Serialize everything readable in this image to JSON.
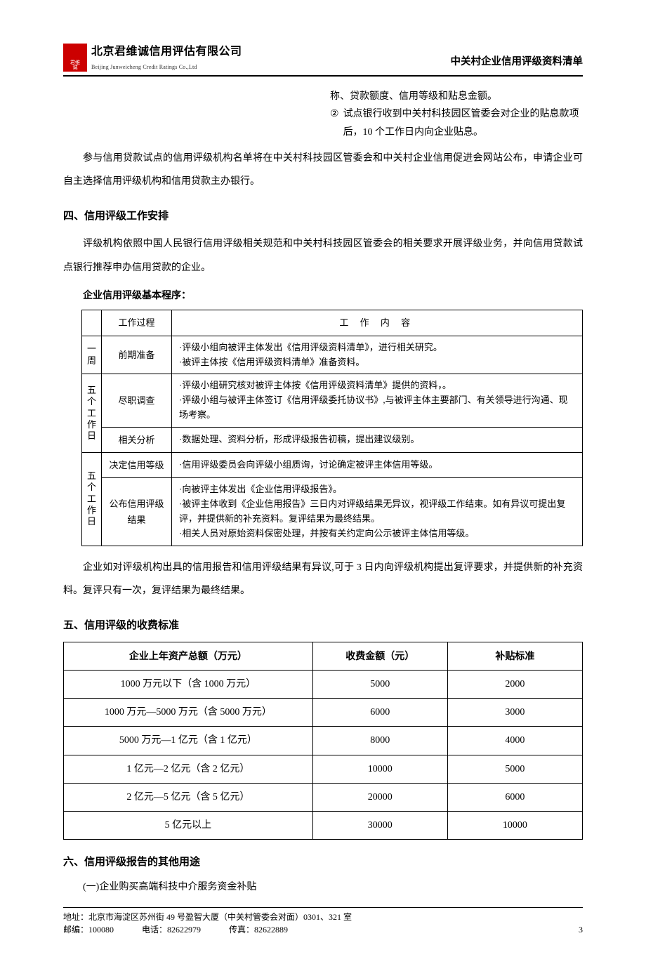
{
  "header": {
    "company_cn": "北京君维诚信用评估有限公司",
    "company_en": "Beijing Junweicheng Credit Ratings Co.,Ltd",
    "logo_chars": "君维诚",
    "doc_title": "中关村企业信用评级资料清单"
  },
  "cont_frag": {
    "line1": "称、贷款额度、信用等级和贴息金额。",
    "item2_marker": "②",
    "item2_text": "试点银行收到中关村科技园区管委会对企业的贴息款项后，10 个工作日内向企业贴息。"
  },
  "para_intro": "参与信用贷款试点的信用评级机构名单将在中关村科技园区管委会和中关村企业信用促进会网站公布，申请企业可自主选择信用评级机构和信用贷款主办银行。",
  "sec4": {
    "title": "四、信用评级工作安排",
    "para": "评级机构依照中国人民银行信用评级相关规范和中关村科技园区管委会的相关要求开展评级业务，并向信用贷款试点银行推荐申办信用贷款的企业。",
    "sub_title": "企业信用评级基本程序：",
    "table": {
      "head_stage": "工作过程",
      "head_content": "工 作 内 容",
      "rows": [
        {
          "period": "一周",
          "stage": "前期准备",
          "content": "·评级小组向被评主体发出《信用评级资料清单》，进行相关研究。\n·被评主体按《信用评级资料清单》准备资料。"
        },
        {
          "period": "五个工作日",
          "stage": "尽职调查",
          "content": "·评级小组研究核对被评主体按《信用评级资料清单》提供的资料，。\n·评级小组与被评主体签订《信用评级委托协议书》,与被评主体主要部门、有关领导进行沟通、现场考察。"
        },
        {
          "stage": "相关分析",
          "content": "·数据处理、资料分析，形成评级报告初稿，提出建议级别。"
        },
        {
          "period": "五个工作日",
          "stage": "决定信用等级",
          "content": "·信用评级委员会向评级小组质询，讨论确定被评主体信用等级。"
        },
        {
          "stage": "公布信用评级结果",
          "content": "·向被评主体发出《企业信用评级报告》。\n·被评主体收到《企业信用报告》三日内对评级结果无异议，视评级工作结束。如有异议可提出复评，并提供新的补充资料。复评结果为最终结果。\n·相关人员对原始资料保密处理，并按有关约定向公示被评主体信用等级。"
        }
      ]
    },
    "para_after": "企业如对评级机构出具的信用报告和信用评级结果有异议,可于 3 日内向评级机构提出复评要求，并提供新的补充资料。复评只有一次，复评结果为最终结果。"
  },
  "sec5": {
    "title": "五、信用评级的收费标准",
    "table": {
      "cols": [
        "企业上年资产总额（万元）",
        "收费金额（元）",
        "补贴标准"
      ],
      "rows": [
        [
          "1000 万元以下（含 1000 万元）",
          "5000",
          "2000"
        ],
        [
          "1000 万元—5000 万元（含 5000 万元）",
          "6000",
          "3000"
        ],
        [
          "5000 万元—1 亿元（含 1 亿元）",
          "8000",
          "4000"
        ],
        [
          "1 亿元—2 亿元（含 2 亿元）",
          "10000",
          "5000"
        ],
        [
          "2 亿元—5 亿元（含 5 亿元）",
          "20000",
          "6000"
        ],
        [
          "5 亿元以上",
          "30000",
          "10000"
        ]
      ]
    }
  },
  "sec6": {
    "title": "六、信用评级报告的其他用途",
    "sub1": "(一)企业购买高端科技中介服务资金补贴"
  },
  "footer": {
    "address": "地址：北京市海淀区苏州街 49 号盈智大厦（中关村管委会对面）0301、321 室",
    "zip_label": "邮编：",
    "zip": "100080",
    "tel_label": "电话：",
    "tel": "82622979",
    "fax_label": "传真：",
    "fax": "82622889",
    "page": "3"
  },
  "colors": {
    "text": "#000000",
    "background": "#ffffff",
    "border": "#000000",
    "logo": "#cc0000"
  },
  "fonts": {
    "body": "SimSun",
    "heading": "SimHei",
    "body_size_pt": 10.5,
    "heading_size_pt": 11
  }
}
